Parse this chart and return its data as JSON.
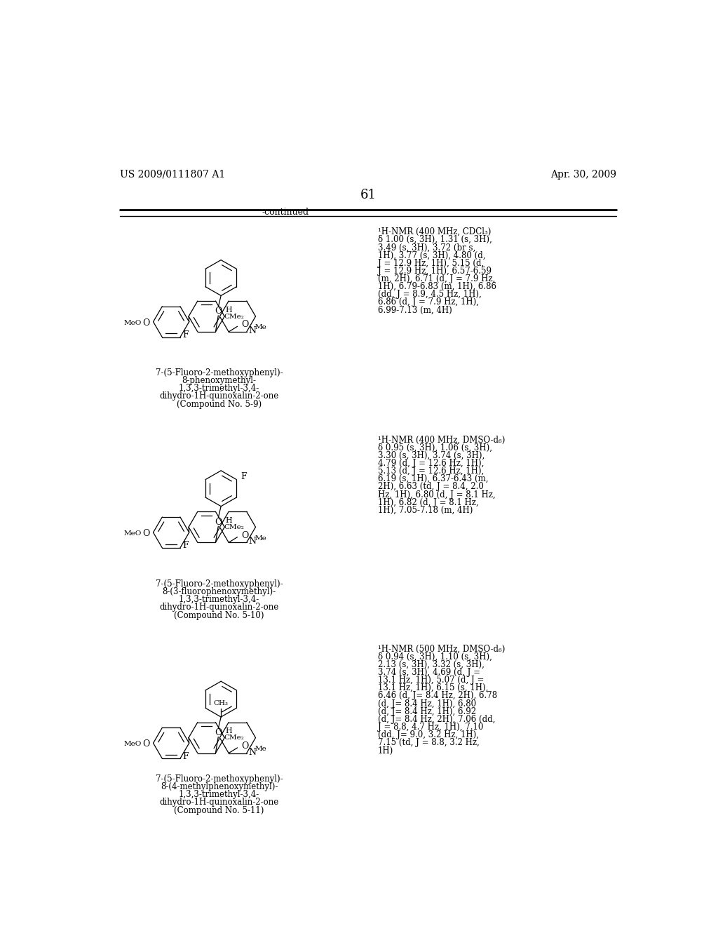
{
  "page_number": "61",
  "header_left": "US 2009/0111807 A1",
  "header_right": "Apr. 30, 2009",
  "continued_label": "-continued",
  "background_color": "#ffffff",
  "text_color": "#000000",
  "compounds": [
    {
      "id": "5-9",
      "name_lines": [
        "7-(5-Fluoro-2-methoxyphenyl)-",
        "8-phenoxymethyl-",
        "1,3,3-trimethyl-3,4-",
        "dihydro-1H-quinoxalin-2-one",
        "(Compound No. 5-9)"
      ],
      "nmr_lines": [
        "¹H-NMR (400 MHz, CDCl₃)",
        "δ 1.00 (s, 3H), 1.31 (s, 3H),",
        "3.49 (s, 3H), 3.72 (br s,",
        "1H), 3.77 (s, 3H), 4.80 (d,",
        "J = 12.9 Hz, 1H), 5.15 (d,",
        "J = 12.9 Hz, 1H), 6.57-6.59",
        "(m, 2H), 6.71 (d, J = 7.9 Hz,",
        "1H), 6.79-6.83 (m, 1H), 6.86",
        "(dd, J = 8.9, 4.5 Hz, 1H),",
        "6.86 (d, J = 7.9 Hz, 1H),",
        "6.99-7.13 (m, 4H)"
      ]
    },
    {
      "id": "5-10",
      "name_lines": [
        "7-(5-Fluoro-2-methoxyphenyl)-",
        "8-(3-fluorophenoxymethyl)-",
        "1,3,3-trimethyl-3,4-",
        "dihydro-1H-quinoxalin-2-one",
        "(Compound No. 5-10)"
      ],
      "nmr_lines": [
        "¹H-NMR (400 MHz, DMSO-d₆)",
        "δ 0.95 (s, 3H), 1.06 (s, 3H),",
        "3.30 (s, 3H), 3.74 (s, 3H),",
        "4.79 (d, J = 12.6 Hz, 1H),",
        "5.13 (d, J = 12.6 Hz, 1H),",
        "6.19 (s, 1H), 6.37-6.43 (m,",
        "2H), 6.63 (td, J = 8.4, 2.0",
        "Hz, 1H), 6.80 (d, J = 8.1 Hz,",
        "1H), 6.82 (d, J = 8.1 Hz,",
        "1H), 7.05-7.18 (m, 4H)"
      ]
    },
    {
      "id": "5-11",
      "name_lines": [
        "7-(5-Fluoro-2-methoxyphenyl)-",
        "8-(4-methylphenoxymethyl)-",
        "1,3,3-trimethyl-3,4-",
        "dihydro-1H-quinoxalin-2-one",
        "(Compound No. 5-11)"
      ],
      "nmr_lines": [
        "¹H-NMR (500 MHz, DMSO-d₆)",
        "δ 0.94 (s, 3H), 1.10 (s, 3H),",
        "2.13 (s, 3H), 3.32 (s, 3H),",
        "3.74 (s, 3H), 4.69 (d, J =",
        "13.1 Hz, 1H), 5.07 (d, J =",
        "13.1 Hz, 1H), 6.15 (s, 1H),",
        "6.46 (d, J= 8.4 Hz, 2H), 6.78",
        "(d, J= 8.4 Hz, 1H), 6.80",
        "(d, J= 8.4 Hz, 1H), 6.92",
        "(d, J= 8.4 Hz, 2H), 7.06 (dd,",
        "J = 8.8, 4.7 Hz, 1H), 7.10",
        "(dd, J= 9.0, 3.2 Hz, 1H),",
        "7.15 (td, J = 8.8, 3.2 Hz,",
        "1H)"
      ]
    }
  ]
}
